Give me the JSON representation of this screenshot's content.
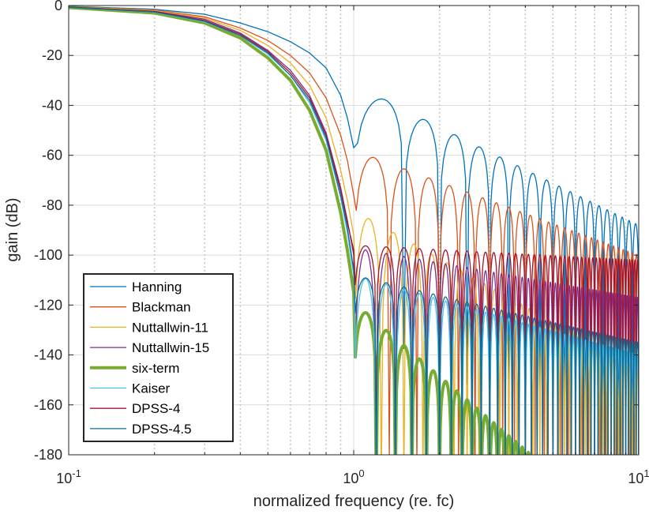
{
  "chart_data": {
    "type": "line",
    "title": "",
    "xlabel": "normalized frequency (re. fc)",
    "ylabel": "gain (dB)",
    "xscale": "log",
    "xlim": [
      0.1,
      10
    ],
    "ylim": [
      -180,
      0
    ],
    "x_major_ticks": [
      0.1,
      1,
      10
    ],
    "x_tick_labels": [
      {
        "base": "10",
        "exp": "-1"
      },
      {
        "base": "10",
        "exp": "0"
      },
      {
        "base": "10",
        "exp": "1"
      }
    ],
    "y_ticks": [
      0,
      -20,
      -40,
      -60,
      -80,
      -100,
      -120,
      -140,
      -160,
      -180
    ],
    "y_tick_labels": [
      "0",
      "-20",
      "-40",
      "-60",
      "-80",
      "-100",
      "-120",
      "-140",
      "-160",
      "-180"
    ],
    "grid": {
      "major": true,
      "minor_x": true
    },
    "legend_position": "bottom-left",
    "series": [
      {
        "name": "Hanning",
        "color": "#0072BD",
        "width": 1.3,
        "main_lobe": {
          "x": [
            0.1,
            0.2,
            0.3,
            0.4,
            0.5,
            0.6,
            0.7,
            0.8,
            0.9,
            0.95,
            1.0
          ],
          "y": [
            -0.3,
            -1.5,
            -3.5,
            -7,
            -10.5,
            -14.5,
            -19,
            -25,
            -36,
            -45,
            -57
          ]
        },
        "lobes": {
          "start": 1.0,
          "width": 0.5,
          "peak0": -32,
          "slope_db_per_decade": -56,
          "null_depth": -25
        },
        "floor": -180
      },
      {
        "name": "Blackman",
        "color": "#D95319",
        "width": 1.3,
        "main_lobe": {
          "x": [
            0.1,
            0.2,
            0.3,
            0.4,
            0.5,
            0.6,
            0.7,
            0.8,
            0.9,
            0.95,
            1.0
          ],
          "y": [
            -0.4,
            -1.8,
            -4.5,
            -9,
            -14,
            -20,
            -27,
            -37,
            -52,
            -62,
            -76
          ]
        },
        "lobes": {
          "start": 1.0,
          "width": 0.333,
          "peak0": -58,
          "slope_db_per_decade": -42,
          "null_depth": -30
        },
        "floor": -180
      },
      {
        "name": "Nuttallwin-11",
        "color": "#EDB120",
        "width": 1.3,
        "main_lobe": {
          "x": [
            0.1,
            0.2,
            0.3,
            0.4,
            0.5,
            0.6,
            0.7,
            0.8,
            0.9,
            0.95,
            1.0
          ],
          "y": [
            -0.5,
            -2,
            -5,
            -10,
            -16,
            -23,
            -32,
            -45,
            -66,
            -78,
            -92
          ]
        },
        "lobes": {
          "start": 1.0,
          "width": 0.25,
          "peak0": -82,
          "slope_db_per_decade": -64,
          "null_depth": -45
        },
        "floor": -180
      },
      {
        "name": "Nuttallwin-15",
        "color": "#7E2F8E",
        "width": 1.3,
        "main_lobe": {
          "x": [
            0.1,
            0.2,
            0.3,
            0.4,
            0.5,
            0.6,
            0.7,
            0.8,
            0.9,
            0.95,
            1.0
          ],
          "y": [
            -0.6,
            -2.3,
            -5.5,
            -11,
            -18,
            -26,
            -36,
            -51,
            -73,
            -86,
            -100
          ]
        },
        "lobes": {
          "start": 1.0,
          "width": 0.2,
          "peak0": -97,
          "slope_db_per_decade": -20,
          "null_depth": -55
        },
        "floor": -180
      },
      {
        "name": "six-term",
        "color": "#77AC30",
        "width": 4,
        "main_lobe": {
          "x": [
            0.1,
            0.2,
            0.3,
            0.4,
            0.5,
            0.6,
            0.7,
            0.8,
            0.9,
            0.95,
            1.0
          ],
          "y": [
            -0.8,
            -3,
            -7,
            -13,
            -21,
            -30,
            -42,
            -58,
            -83,
            -98,
            -115
          ]
        },
        "lobes": {
          "start": 1.0,
          "width": 0.2,
          "peak0": -119,
          "slope_db_per_decade": -98,
          "null_depth": -25
        },
        "floor": -180
      },
      {
        "name": "Kaiser",
        "color": "#4DBEEE",
        "width": 1.3,
        "main_lobe": {
          "x": [
            0.1,
            0.2,
            0.3,
            0.4,
            0.5,
            0.6,
            0.7,
            0.8,
            0.9,
            0.95,
            1.0
          ],
          "y": [
            -0.7,
            -2.7,
            -6.5,
            -12,
            -19.5,
            -28,
            -39,
            -54,
            -77,
            -91,
            -108
          ]
        },
        "lobes": {
          "start": 1.0,
          "width": 0.2,
          "peak0": -108,
          "slope_db_per_decade": -32,
          "null_depth": -45
        },
        "floor": -180
      },
      {
        "name": "DPSS-4",
        "color": "#A2142F",
        "width": 1.3,
        "main_lobe": {
          "x": [
            0.1,
            0.2,
            0.3,
            0.4,
            0.5,
            0.6,
            0.7,
            0.8,
            0.9,
            0.95,
            1.0
          ],
          "y": [
            -0.6,
            -2.4,
            -6,
            -11.5,
            -18.5,
            -27,
            -37,
            -52,
            -74,
            -87,
            -98
          ]
        },
        "lobes": {
          "start": 1.0,
          "width": 0.2,
          "peak0": -96,
          "slope_db_per_decade": -6,
          "null_depth": -22
        },
        "floor": -180
      },
      {
        "name": "DPSS-4.5",
        "color": "#0F6E96",
        "width": 1.3,
        "main_lobe": {
          "x": [
            0.1,
            0.2,
            0.3,
            0.4,
            0.5,
            0.6,
            0.7,
            0.8,
            0.9,
            0.95,
            1.0
          ],
          "y": [
            -0.7,
            -2.6,
            -6.3,
            -12,
            -19,
            -28,
            -38,
            -53,
            -76,
            -89,
            -106
          ]
        },
        "lobes": {
          "start": 1.0,
          "width": 0.2,
          "peak0": -108,
          "slope_db_per_decade": -27,
          "null_depth": -20
        },
        "floor": -180
      }
    ]
  }
}
